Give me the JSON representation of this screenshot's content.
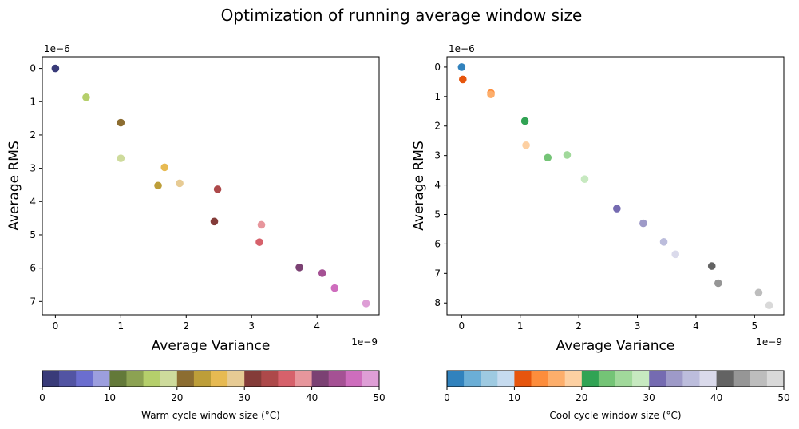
{
  "figure": {
    "title": "Optimization of running average window size"
  },
  "chart_data": [
    {
      "type": "scatter",
      "xlabel": "Average Variance",
      "ylabel": "Average RMS",
      "x_multiplier_label": "1e−9",
      "y_multiplier_label": "1e−6",
      "x_scale": 1e-09,
      "y_scale": 1e-06,
      "xlim": [
        -0.2,
        4.95
      ],
      "ylim": [
        7.4,
        -0.35
      ],
      "y_inverted": true,
      "x_ticks": [
        0,
        1,
        2,
        3,
        4
      ],
      "y_ticks": [
        0,
        1,
        2,
        3,
        4,
        5,
        6,
        7
      ],
      "grid": false,
      "points": [
        {
          "x": 0.0,
          "y": 0.0,
          "color": "#393b79"
        },
        {
          "x": 0.47,
          "y": 0.87,
          "color": "#b5cf6b"
        },
        {
          "x": 1.0,
          "y": 1.63,
          "color": "#8c6d31"
        },
        {
          "x": 1.0,
          "y": 2.7,
          "color": "#cedb9c"
        },
        {
          "x": 1.67,
          "y": 2.97,
          "color": "#e7ba52"
        },
        {
          "x": 1.57,
          "y": 3.52,
          "color": "#bd9e39"
        },
        {
          "x": 1.9,
          "y": 3.45,
          "color": "#e7cb94"
        },
        {
          "x": 2.48,
          "y": 3.63,
          "color": "#ad494a"
        },
        {
          "x": 2.43,
          "y": 4.6,
          "color": "#843c39"
        },
        {
          "x": 3.15,
          "y": 4.7,
          "color": "#e7969c"
        },
        {
          "x": 3.12,
          "y": 5.22,
          "color": "#d6616b"
        },
        {
          "x": 3.73,
          "y": 5.98,
          "color": "#7b4173"
        },
        {
          "x": 4.08,
          "y": 6.15,
          "color": "#a55194"
        },
        {
          "x": 4.27,
          "y": 6.6,
          "color": "#ce6dbd"
        },
        {
          "x": 4.75,
          "y": 7.06,
          "color": "#de9ed6"
        }
      ],
      "colorbar": {
        "label": "Warm cycle window size (°C)",
        "range": [
          0,
          50
        ],
        "ticks": [
          0,
          10,
          20,
          30,
          40,
          50
        ],
        "colors": [
          "#393b79",
          "#5254a3",
          "#6b6ecf",
          "#9c9ede",
          "#637939",
          "#8ca252",
          "#b5cf6b",
          "#cedb9c",
          "#8c6d31",
          "#bd9e39",
          "#e7ba52",
          "#e7cb94",
          "#843c39",
          "#ad494a",
          "#d6616b",
          "#e7969c",
          "#7b4173",
          "#a55194",
          "#ce6dbd",
          "#de9ed6"
        ]
      }
    },
    {
      "type": "scatter",
      "xlabel": "Average Variance",
      "ylabel": "Average RMS",
      "x_multiplier_label": "1e−9",
      "y_multiplier_label": "1e−6",
      "x_scale": 1e-09,
      "y_scale": 1e-06,
      "xlim": [
        -0.25,
        5.5
      ],
      "ylim": [
        8.4,
        -0.35
      ],
      "y_inverted": true,
      "x_ticks": [
        0,
        1,
        2,
        3,
        4,
        5
      ],
      "y_ticks": [
        0,
        1,
        2,
        3,
        4,
        5,
        6,
        7,
        8
      ],
      "grid": false,
      "points": [
        {
          "x": 0.0,
          "y": 0.0,
          "color": "#3182bd"
        },
        {
          "x": 0.02,
          "y": 0.42,
          "color": "#e6550d"
        },
        {
          "x": 0.5,
          "y": 0.88,
          "color": "#fd8d3c"
        },
        {
          "x": 0.5,
          "y": 0.93,
          "color": "#fdae6b"
        },
        {
          "x": 1.08,
          "y": 1.83,
          "color": "#31a354"
        },
        {
          "x": 1.1,
          "y": 2.65,
          "color": "#fdd0a2"
        },
        {
          "x": 1.47,
          "y": 3.07,
          "color": "#74c476"
        },
        {
          "x": 1.8,
          "y": 2.98,
          "color": "#a1d99b"
        },
        {
          "x": 2.1,
          "y": 3.8,
          "color": "#c7e9c0"
        },
        {
          "x": 2.65,
          "y": 4.8,
          "color": "#756bb1"
        },
        {
          "x": 3.1,
          "y": 5.3,
          "color": "#9e9ac8"
        },
        {
          "x": 3.45,
          "y": 5.93,
          "color": "#bcbddc"
        },
        {
          "x": 3.65,
          "y": 6.35,
          "color": "#dadaeb"
        },
        {
          "x": 4.27,
          "y": 6.75,
          "color": "#636363"
        },
        {
          "x": 4.38,
          "y": 7.33,
          "color": "#969696"
        },
        {
          "x": 5.07,
          "y": 7.65,
          "color": "#bdbdbd"
        },
        {
          "x": 5.25,
          "y": 8.08,
          "color": "#d9d9d9"
        }
      ],
      "colorbar": {
        "label": "Cool cycle window size (°C)",
        "range": [
          0,
          50
        ],
        "ticks": [
          0,
          10,
          20,
          30,
          40,
          50
        ],
        "colors": [
          "#3182bd",
          "#6baed6",
          "#9ecae1",
          "#c6dbef",
          "#e6550d",
          "#fd8d3c",
          "#fdae6b",
          "#fdd0a2",
          "#31a354",
          "#74c476",
          "#a1d99b",
          "#c7e9c0",
          "#756bb1",
          "#9e9ac8",
          "#bcbddc",
          "#dadaeb",
          "#636363",
          "#969696",
          "#bdbdbd",
          "#d9d9d9"
        ]
      }
    }
  ]
}
